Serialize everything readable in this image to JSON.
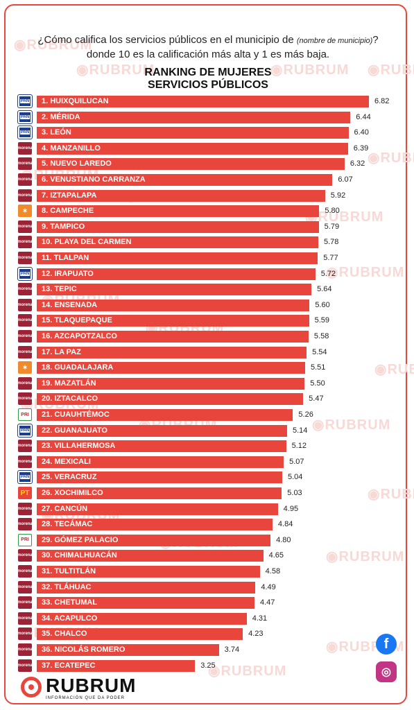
{
  "question": {
    "part1": "¿Cómo califica los servicios públicos en el municipio de",
    "italic": "(nombre de municipio)",
    "part2": "? donde 10 es la calificación más alta y 1 es más baja."
  },
  "title_line1": "RANKING DE MUJERES",
  "title_line2": "SERVICIOS PÚBLICOS",
  "watermark_text": "RUBRUM",
  "brand": {
    "name": "RUBRUM",
    "tagline": "INFORMACIÓN QUE DA PODER"
  },
  "social_icons": [
    "facebook-icon",
    "instagram-icon"
  ],
  "colors": {
    "bar": "#e8463c",
    "pan": "#1a3d8f",
    "morena": "#9b2335",
    "mc": "#f08a2a",
    "pri": "#2e9a44",
    "pt": "#e8463c"
  },
  "chart_data": {
    "type": "bar",
    "orientation": "horizontal",
    "title": "RANKING DE MUJERES SERVICIOS PÚBLICOS",
    "categories": [
      "1. HUIXQUILUCAN",
      "2. MÉRIDA",
      "3. LEÓN",
      "4. MANZANILLO",
      "5. NUEVO LAREDO",
      "6. VENUSTIANO CARRANZA",
      "7. IZTAPALAPA",
      "8. CAMPECHE",
      "9. TAMPICO",
      "10. PLAYA DEL CARMEN",
      "11. TLALPAN",
      "12. IRAPUATO",
      "13. TEPIC",
      "14. ENSENADA",
      "15. TLAQUEPAQUE",
      "16. AZCAPOTZALCO",
      "17. LA PAZ",
      "18. GUADALAJARA",
      "19. MAZATLÁN",
      "20. IZTACALCO",
      "21. CUAUHTÉMOC",
      "22. GUANAJUATO",
      "23. VILLAHERMOSA",
      "24. MEXICALI",
      "25. VERACRUZ",
      "26. XOCHIMILCO",
      "27. CANCÚN",
      "28. TECÁMAC",
      "29. GÓMEZ PALACIO",
      "30. CHIMALHUACÁN",
      "31. TULTITLÁN",
      "32. TLÁHUAC",
      "33. CHETUMAL",
      "34. ACAPULCO",
      "35. CHALCO",
      "36. NICOLÁS ROMERO",
      "37. ECATEPEC"
    ],
    "values": [
      6.82,
      6.44,
      6.4,
      6.39,
      6.32,
      6.07,
      5.92,
      5.8,
      5.79,
      5.78,
      5.77,
      5.72,
      5.64,
      5.6,
      5.59,
      5.58,
      5.54,
      5.51,
      5.5,
      5.47,
      5.26,
      5.14,
      5.12,
      5.07,
      5.04,
      5.03,
      4.95,
      4.84,
      4.8,
      4.65,
      4.58,
      4.49,
      4.47,
      4.31,
      4.23,
      3.74,
      3.25
    ],
    "value_labels": [
      "6.82",
      "6.44",
      "6.40",
      "6.39",
      "6.32",
      "6.07",
      "5.92",
      "5.80",
      "5.79",
      "5.78",
      "5.77",
      "5.72",
      "5.64",
      "5.60",
      "5.59",
      "5.58",
      "5.54",
      "5.51",
      "5.50",
      "5.47",
      "5.26",
      "5.14",
      "5.12",
      "5.07",
      "5.04",
      "5.03",
      "4.95",
      "4.84",
      "4.80",
      "4.65",
      "4.58",
      "4.49",
      "4.47",
      "4.31",
      "4.23",
      "3.74",
      "3.25"
    ],
    "party_logos": [
      "pan",
      "pan",
      "pan",
      "morena",
      "morena",
      "morena",
      "morena",
      "mc",
      "morena",
      "morena",
      "morena",
      "pan",
      "morena",
      "morena",
      "morena",
      "morena",
      "morena",
      "mc",
      "morena",
      "morena",
      "pri",
      "pan",
      "morena",
      "morena",
      "pan",
      "pt",
      "morena",
      "morena",
      "pri",
      "morena",
      "morena",
      "morena",
      "morena",
      "morena",
      "morena",
      "morena",
      "morena"
    ],
    "logo_text": {
      "pan": "PAN",
      "morena": "morena",
      "mc": "✶",
      "pri": "PRI",
      "pt": "PT"
    }
  }
}
